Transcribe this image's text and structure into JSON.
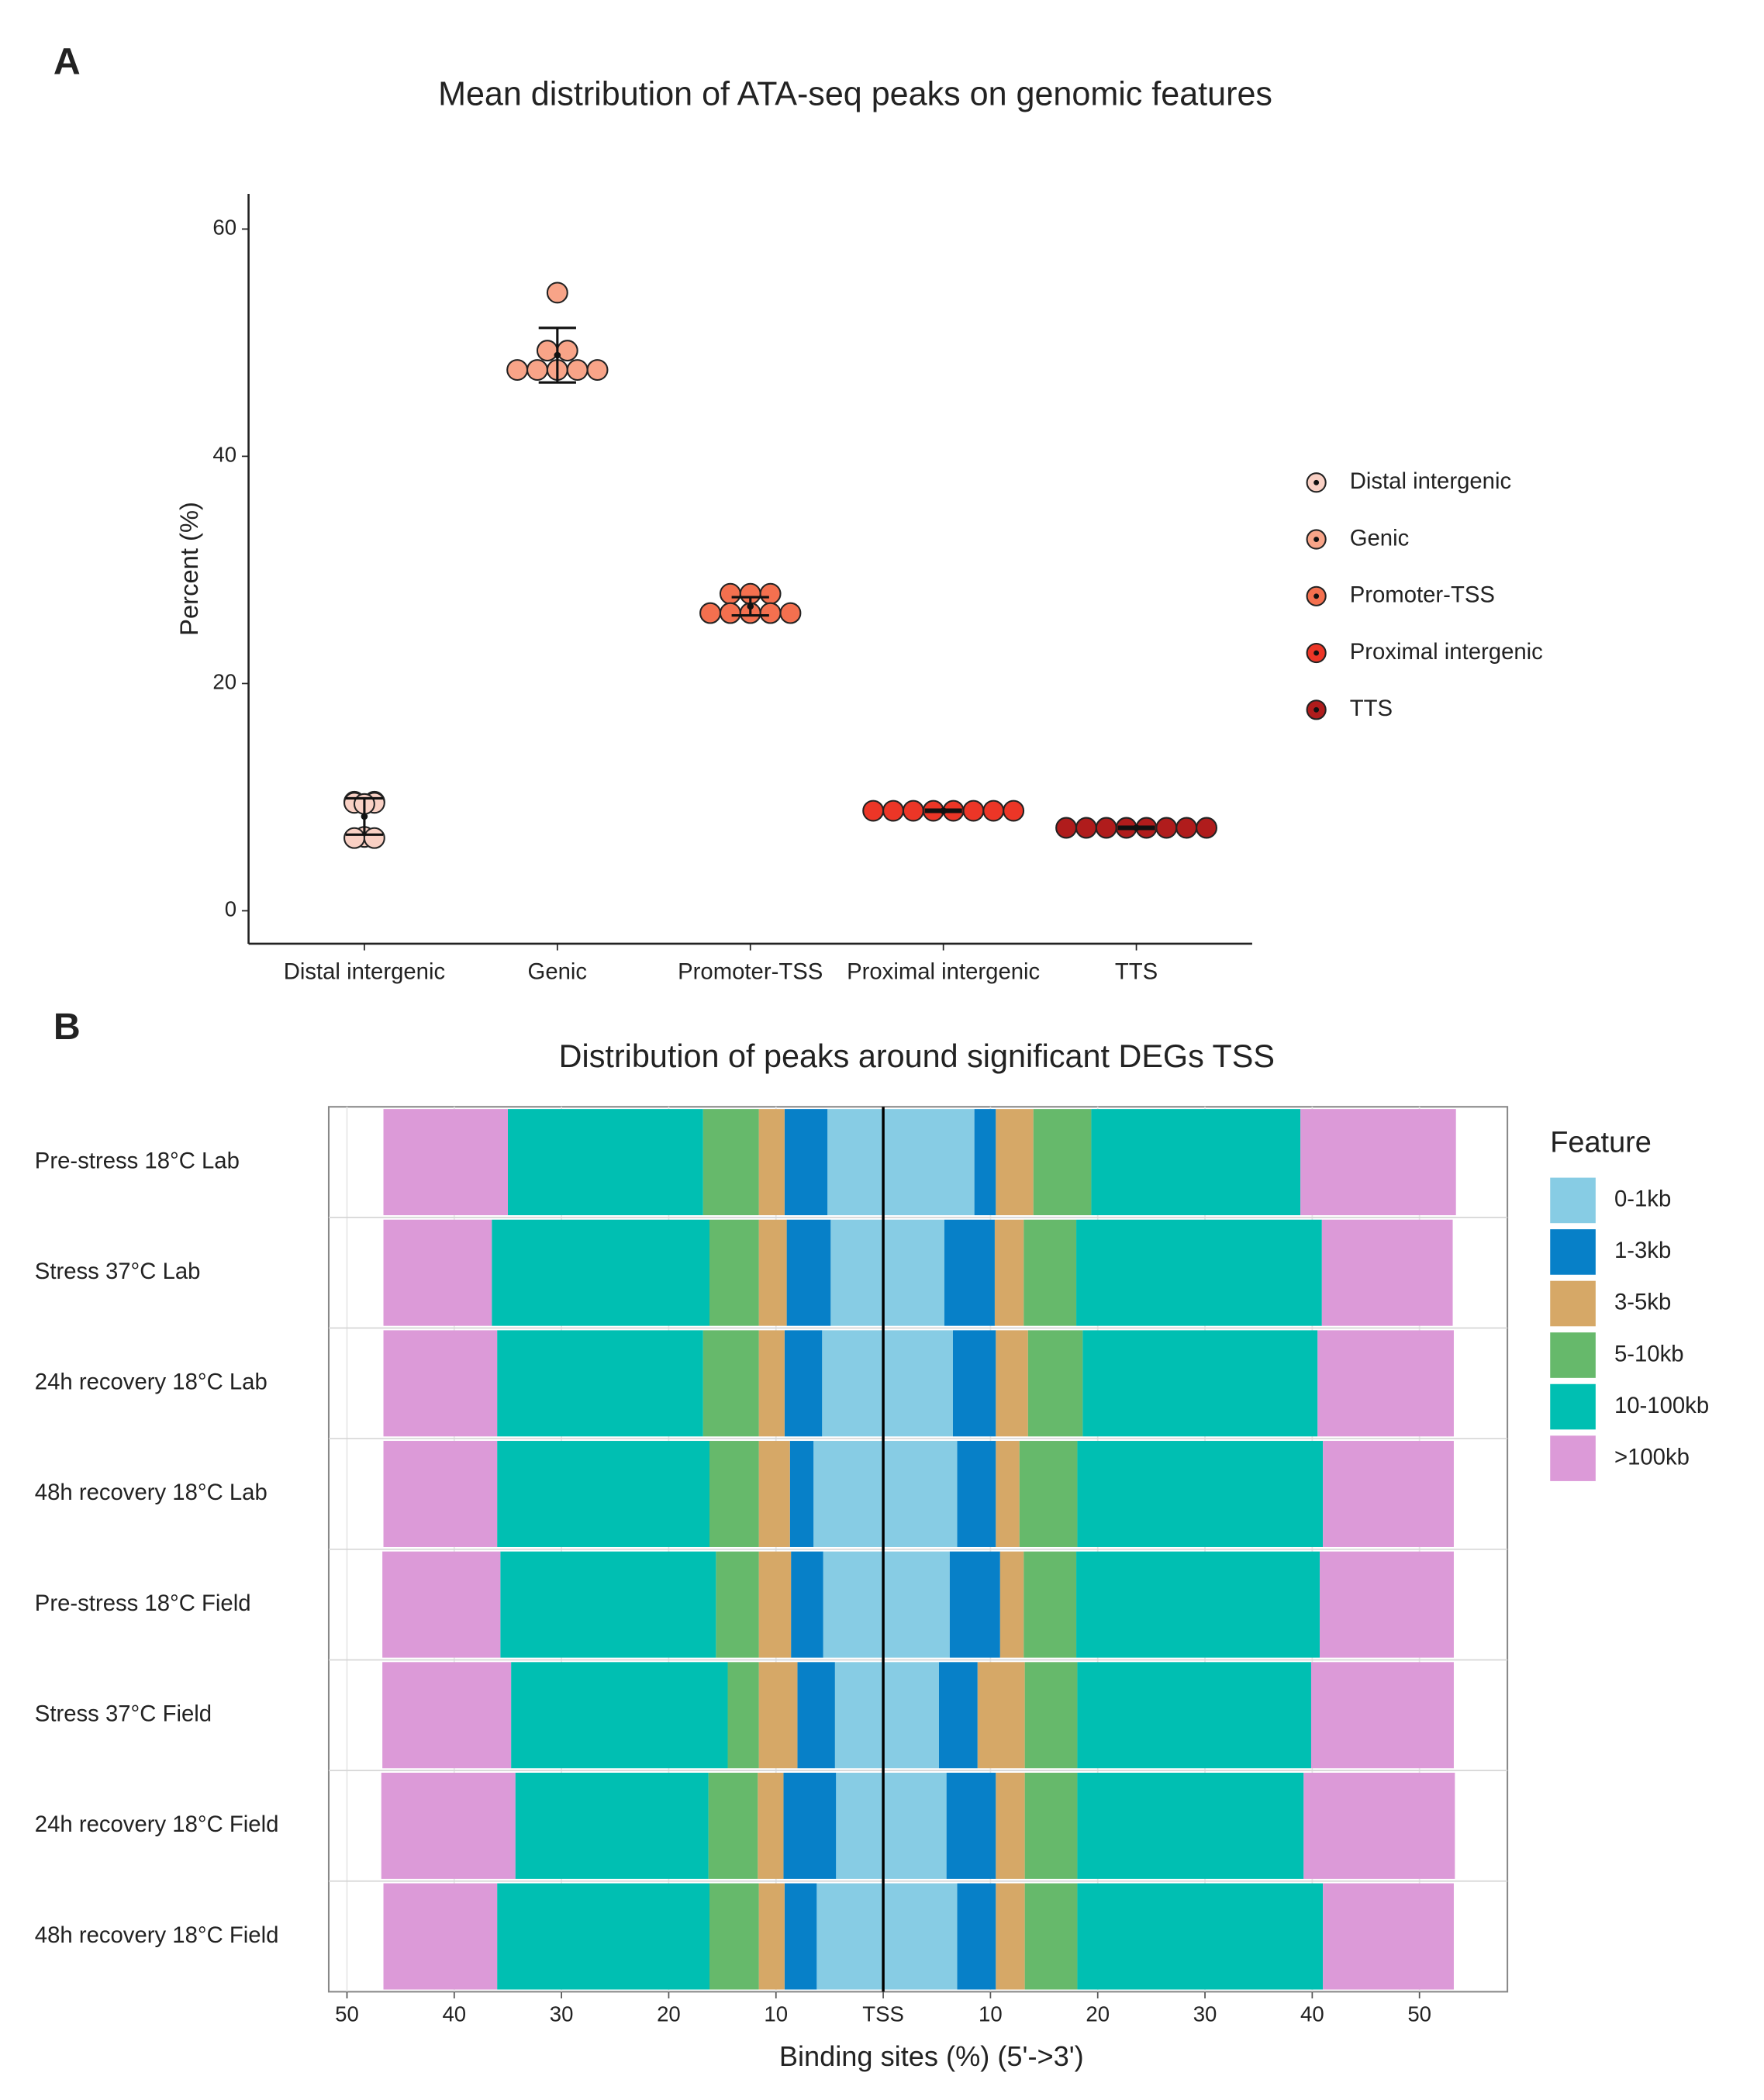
{
  "chart_data": [
    {
      "type": "dot",
      "panel_label": "A",
      "title": "Mean distribution of ATA-seq peaks on genomic features",
      "y_label": "Percent (%)",
      "categories": [
        "Distal intergenic",
        "Genic",
        "Promoter-TSS",
        "Proximal intergenic",
        "TTS"
      ],
      "colors": [
        "#f9d0c4",
        "#f8a488",
        "#f4704f",
        "#ec3627",
        "#b01c1c"
      ],
      "points": [
        [
          9.6,
          9.6,
          9.5,
          9.5,
          9.4,
          6.5,
          6.4,
          6.4
        ],
        [
          54.4,
          49.3,
          49.3,
          47.6,
          47.6,
          47.6,
          47.6,
          47.6
        ],
        [
          27.9,
          27.9,
          27.9,
          26.2,
          26.2,
          26.2,
          26.2,
          26.2
        ],
        [
          8.8,
          8.8,
          8.8,
          8.8,
          8.8,
          8.8,
          8.8,
          8.8
        ],
        [
          7.3,
          7.3,
          7.3,
          7.3,
          7.3,
          7.3,
          7.3,
          7.3
        ]
      ],
      "means": [
        8.3,
        48.9,
        26.8,
        8.8,
        7.3
      ],
      "errors": [
        1.6,
        2.4,
        0.8,
        0.1,
        0.1
      ],
      "ylim": [
        -2.9,
        63.1
      ],
      "yticks": [
        0,
        20,
        40,
        60
      ],
      "legend": "right"
    },
    {
      "type": "diverging_bar",
      "panel_label": "B",
      "title": "Distribution of peaks around significant DEGs TSS",
      "x_label": "Binding sites (%) (5'->3')",
      "legend_title": "Feature",
      "categories": [
        "Pre-stress 18°C Lab",
        "Stress 37°C Lab",
        "24h recovery 18°C Lab",
        "48h recovery 18°C Lab",
        "Pre-stress 18°C Field",
        "Stress 37°C Field",
        "24h recovery 18°C Field",
        "48h recovery 18°C Field"
      ],
      "series": [
        {
          "name": "0-1kb",
          "color": "#87cce4",
          "upstream": [
            5.2,
            4.9,
            5.7,
            6.5,
            5.6,
            4.5,
            4.4,
            6.2
          ],
          "downstream": [
            8.5,
            5.7,
            6.5,
            6.9,
            6.2,
            5.2,
            5.9,
            6.9
          ]
        },
        {
          "name": "1-3kb",
          "color": "#0780c8",
          "upstream": [
            4.0,
            4.1,
            3.5,
            2.2,
            3.0,
            3.5,
            4.9,
            3.0
          ],
          "downstream": [
            2.0,
            4.7,
            4.0,
            3.6,
            4.7,
            3.6,
            4.6,
            3.6
          ]
        },
        {
          "name": "3-5kb",
          "color": "#d6a867",
          "upstream": [
            2.4,
            2.6,
            2.4,
            2.9,
            3.0,
            3.6,
            2.4,
            2.4
          ],
          "downstream": [
            3.5,
            2.7,
            3.0,
            2.2,
            2.2,
            4.4,
            2.7,
            2.7
          ]
        },
        {
          "name": "5-10kb",
          "color": "#66b96b",
          "upstream": [
            5.2,
            4.6,
            5.2,
            4.6,
            4.0,
            2.9,
            4.6,
            4.6
          ],
          "downstream": [
            5.4,
            4.9,
            5.1,
            5.4,
            4.9,
            4.9,
            4.9,
            4.9
          ]
        },
        {
          "name": "10-100kb",
          "color": "#00bfb2",
          "upstream": [
            18.2,
            20.3,
            19.2,
            19.8,
            20.1,
            20.2,
            18.0,
            19.8
          ],
          "downstream": [
            19.5,
            22.9,
            21.9,
            22.9,
            22.7,
            21.8,
            21.1,
            22.9
          ]
        },
        {
          "name": ">100kb",
          "color": "#dc9ad8",
          "upstream": [
            11.6,
            10.1,
            10.6,
            10.6,
            11.0,
            12.0,
            12.5,
            10.6
          ],
          "downstream": [
            14.5,
            12.2,
            12.7,
            12.2,
            12.5,
            13.3,
            14.1,
            12.2
          ]
        }
      ],
      "xlim": [
        -51.7,
        58.2
      ],
      "xticks": [
        {
          "value": -50,
          "label": "50"
        },
        {
          "value": -40,
          "label": "40"
        },
        {
          "value": -30,
          "label": "30"
        },
        {
          "value": -20,
          "label": "20"
        },
        {
          "value": -10,
          "label": "10"
        },
        {
          "value": 0,
          "label": "TSS"
        },
        10,
        20,
        30,
        40,
        50
      ],
      "grid": true,
      "legend": "right"
    }
  ]
}
